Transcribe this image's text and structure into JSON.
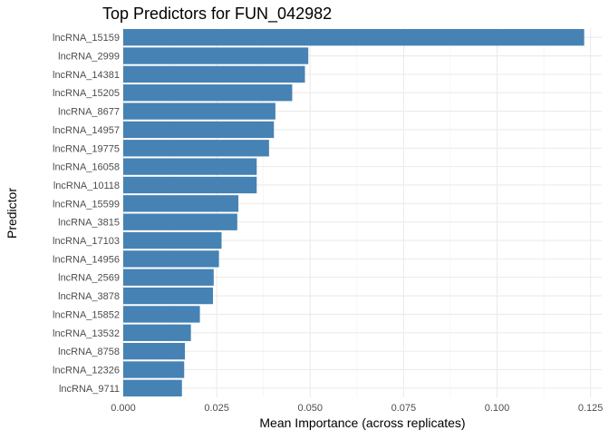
{
  "chart_data": {
    "type": "bar",
    "orientation": "horizontal",
    "title": "Top Predictors for FUN_042982",
    "xlabel": "Mean Importance (across replicates)",
    "ylabel": "Predictor",
    "xlim": [
      0,
      0.128
    ],
    "xticks": [
      "0.000",
      "0.025",
      "0.050",
      "0.075",
      "0.100",
      "0.125"
    ],
    "xtick_values": [
      0,
      0.025,
      0.05,
      0.075,
      0.1,
      0.125
    ],
    "grid": true,
    "bar_color": "#4682B4",
    "categories": [
      "lncRNA_15159",
      "lncRNA_2999",
      "lncRNA_14381",
      "lncRNA_15205",
      "lncRNA_8677",
      "lncRNA_14957",
      "lncRNA_19775",
      "lncRNA_16058",
      "lncRNA_10118",
      "lncRNA_15599",
      "lncRNA_3815",
      "lncRNA_17103",
      "lncRNA_14956",
      "lncRNA_2569",
      "lncRNA_3878",
      "lncRNA_15852",
      "lncRNA_13532",
      "lncRNA_8758",
      "lncRNA_12326",
      "lncRNA_9711"
    ],
    "values": [
      0.1233,
      0.0495,
      0.0486,
      0.0452,
      0.0407,
      0.0403,
      0.039,
      0.0357,
      0.0357,
      0.0308,
      0.0305,
      0.0263,
      0.0256,
      0.0242,
      0.024,
      0.0205,
      0.0181,
      0.0165,
      0.0163,
      0.0157
    ]
  }
}
